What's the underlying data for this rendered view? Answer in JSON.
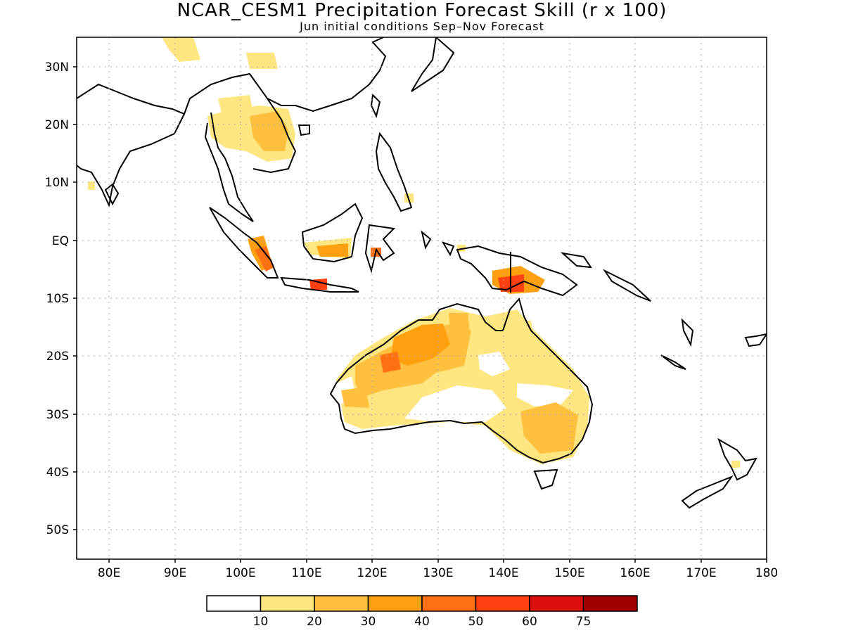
{
  "title": "NCAR_CESM1 Precipitation Forecast Skill (r x 100)",
  "subtitle": "Jun initial conditions  Sep–Nov Forecast",
  "map": {
    "lon_range": [
      75,
      180
    ],
    "lat_range": [
      -55,
      35
    ],
    "lon_ticks": [
      "80E",
      "90E",
      "100E",
      "110E",
      "120E",
      "130E",
      "140E",
      "150E",
      "160E",
      "170E",
      "180"
    ],
    "lat_ticks": [
      "30N",
      "20N",
      "10N",
      "EQ",
      "10S",
      "20S",
      "30S",
      "40S",
      "50S"
    ],
    "gridlines": true
  },
  "colorbar": {
    "labels": [
      "10",
      "20",
      "30",
      "40",
      "50",
      "60",
      "75"
    ],
    "colors": [
      "#ffffff",
      "#ffe680",
      "#ffc040",
      "#ffa010",
      "#ff7010",
      "#ff4010",
      "#dd1010",
      "#a00000"
    ]
  }
}
